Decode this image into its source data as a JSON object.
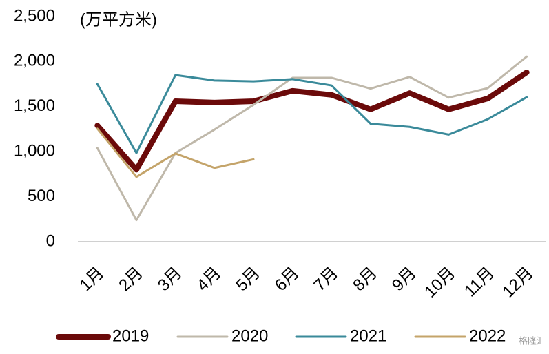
{
  "chart_data": {
    "type": "line",
    "unit_label": "(万平方米)",
    "categories": [
      "1月",
      "2月",
      "3月",
      "4月",
      "5月",
      "6月",
      "7月",
      "8月",
      "9月",
      "10月",
      "11月",
      "12月"
    ],
    "series": [
      {
        "name": "2019",
        "color": "#6b0a0a",
        "width": 8,
        "values": [
          1290,
          800,
          1560,
          1545,
          1560,
          1675,
          1630,
          1470,
          1650,
          1470,
          1590,
          1880
        ]
      },
      {
        "name": "2020",
        "color": "#bfb8aa",
        "width": 3,
        "values": [
          1040,
          240,
          985,
          1245,
          1520,
          1820,
          1820,
          1700,
          1830,
          1600,
          1705,
          2055
        ]
      },
      {
        "name": "2021",
        "color": "#3a8a9a",
        "width": 3,
        "values": [
          1750,
          985,
          1850,
          1790,
          1780,
          1805,
          1735,
          1310,
          1275,
          1190,
          1360,
          1605
        ]
      },
      {
        "name": "2022",
        "color": "#c4a46a",
        "width": 3,
        "values": [
          1255,
          720,
          980,
          820,
          915,
          null,
          null,
          null,
          null,
          null,
          null,
          null
        ]
      }
    ],
    "ylim": [
      0,
      2500
    ],
    "yticks": [
      0,
      500,
      {
        "value": 1000,
        "label": "1,000"
      },
      {
        "value": 1500,
        "label": "1,500"
      },
      {
        "value": 2000,
        "label": "2,000"
      },
      {
        "value": 2500,
        "label": "2,500"
      }
    ],
    "grid": false,
    "legend": "bottom",
    "watermark": "格隆汇"
  }
}
